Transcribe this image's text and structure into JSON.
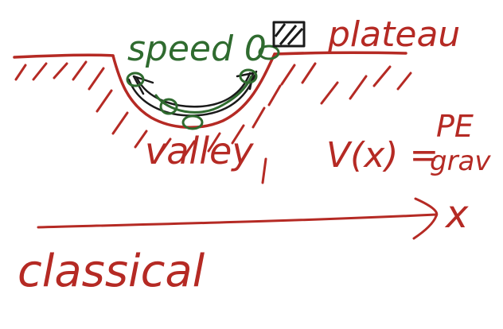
{
  "colors": {
    "red_ink": "#b52a24",
    "green_ink": "#2f6b2f",
    "black_ink": "#1a1a1a"
  },
  "labels": {
    "speed": "speed 0",
    "plateau": "plateau",
    "valley": "valley",
    "potential_lhs": "V(x) =",
    "potential_top": "PE",
    "potential_bottom": "grav",
    "axis_var": "x",
    "classical": "classical"
  }
}
